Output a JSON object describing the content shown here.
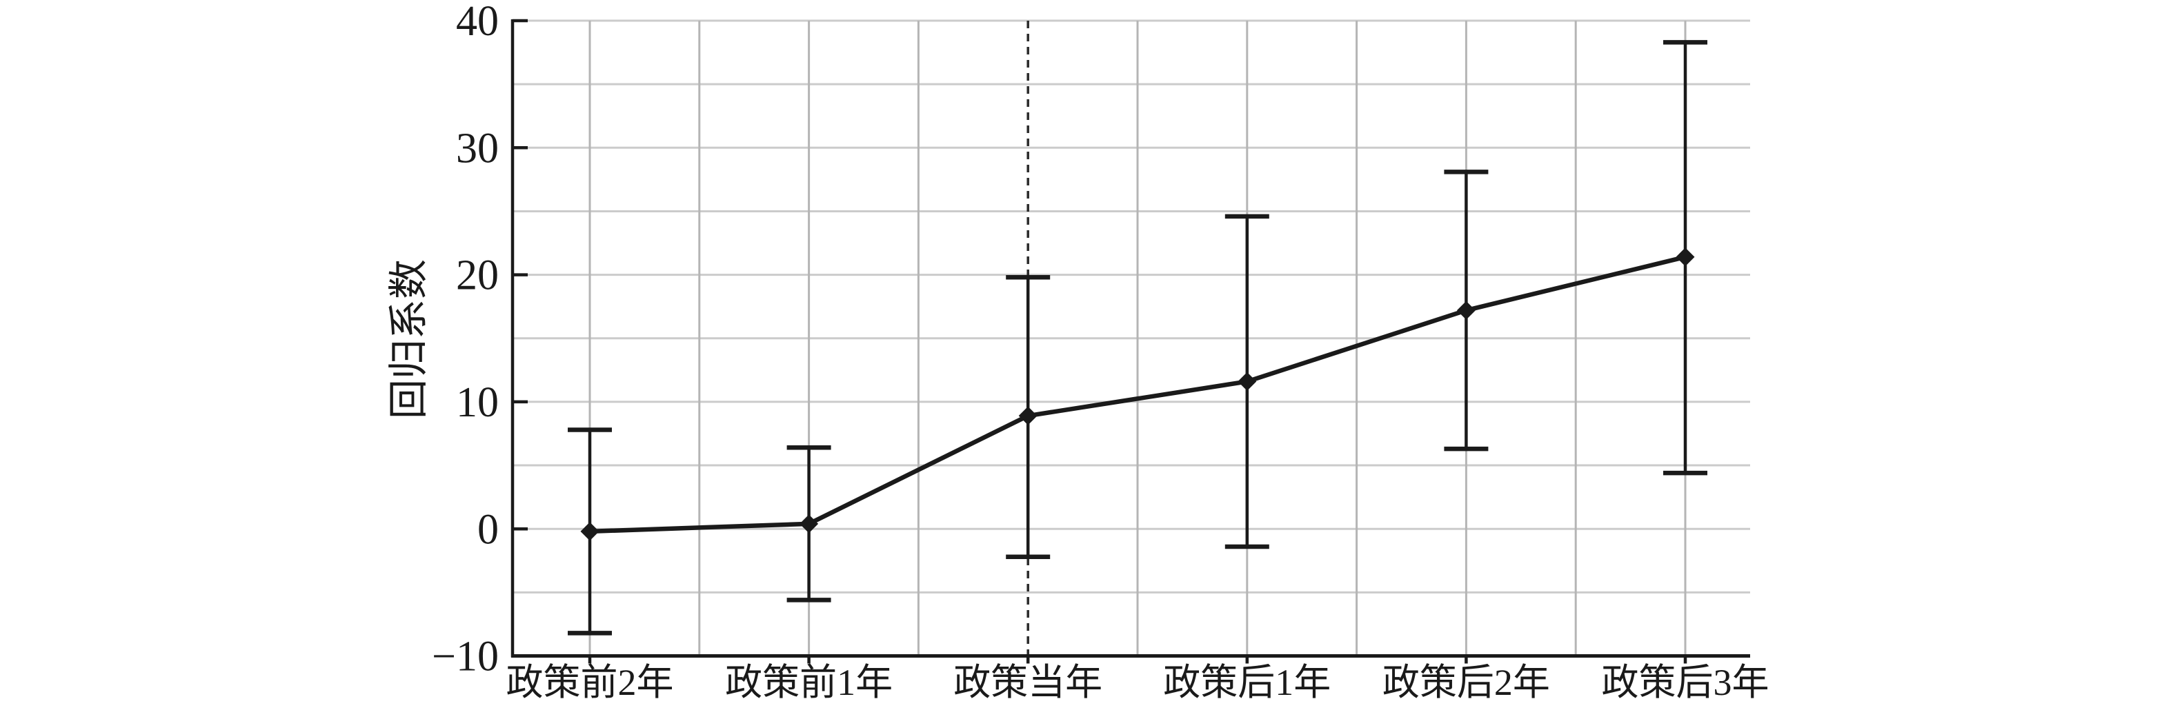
{
  "figure": {
    "background": "#ffffff",
    "colors": {
      "ink": "#1a1a1a",
      "grid_horizontal": "#cbcbcb",
      "grid_vertical": "#b5b5b5",
      "dashed_reference": "#2b2b2b"
    }
  },
  "chart_data": {
    "type": "line",
    "title": "",
    "xlabel": "",
    "ylabel": "回归系数",
    "categories": [
      "政策前2年",
      "政策前1年",
      "政策当年",
      "政策后1年",
      "政策后2年",
      "政策后3年"
    ],
    "series": [
      {
        "name": "回归系数",
        "values": [
          -0.2,
          0.4,
          8.9,
          11.6,
          17.2,
          21.4
        ]
      }
    ],
    "error_bars": {
      "lower": [
        -8.2,
        -5.6,
        -2.2,
        -1.4,
        6.3,
        4.4
      ],
      "upper": [
        7.8,
        6.4,
        19.8,
        24.6,
        28.1,
        38.3
      ]
    },
    "reference_line": {
      "orientation": "vertical",
      "category": "政策当年",
      "style": "dashed"
    },
    "ylim": [
      -10,
      40
    ],
    "y_axis_ticks": [
      40,
      30,
      20,
      10,
      0,
      -10
    ],
    "y_minor_step": 5,
    "grid": true,
    "legend_position": "none",
    "marker": "diamond",
    "line_color": "#1a1a1a"
  }
}
